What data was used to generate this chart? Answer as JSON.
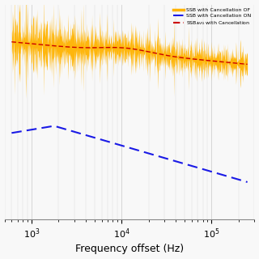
{
  "title": "",
  "xlabel": "Frequency offset (Hz)",
  "ylabel": "",
  "background_color": "#F8F8F8",
  "grid_color": "#CCCCCC",
  "ssb_off_color": "#FFB300",
  "ssb_on_color": "#1A1AE6",
  "ssb_avg_color": "#CC0000",
  "fill_color": "#FFB300",
  "xlim": [
    500,
    300000
  ],
  "ylim_bottom": -170,
  "ylim_top": -55,
  "legend_labels": [
    "SSB with Cancellation OF",
    "SSB with Cancellation ON",
    "SSB_AVG with Cancellation"
  ],
  "seed": 12
}
